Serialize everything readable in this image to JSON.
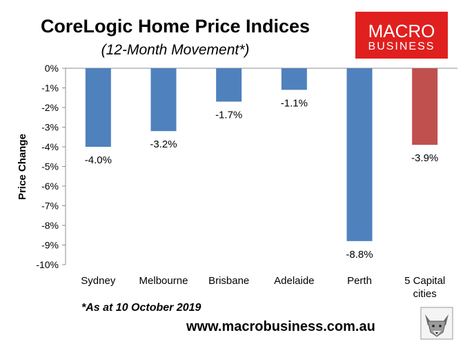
{
  "chart_data": {
    "type": "bar",
    "title": "CoreLogic Home Price Indices",
    "subtitle": "(12-Month Movement*)",
    "xlabel": "",
    "ylabel": "Price Change",
    "categories": [
      "Sydney",
      "Melbourne",
      "Brisbane",
      "Adelaide",
      "Perth",
      "5 Capital cities"
    ],
    "values": [
      -4.0,
      -3.2,
      -1.7,
      -1.1,
      -8.8,
      -3.9
    ],
    "value_labels": [
      "-4.0%",
      "-3.2%",
      "-1.7%",
      "-1.1%",
      "-8.8%",
      "-3.9%"
    ],
    "bar_colors": [
      "#4F81BD",
      "#4F81BD",
      "#4F81BD",
      "#4F81BD",
      "#4F81BD",
      "#C0504D"
    ],
    "ylim": [
      -10,
      0
    ],
    "yticks": [
      0,
      -1,
      -2,
      -3,
      -4,
      -5,
      -6,
      -7,
      -8,
      -9,
      -10
    ],
    "ytick_labels": [
      "0%",
      "-1%",
      "-2%",
      "-3%",
      "-4%",
      "-5%",
      "-6%",
      "-7%",
      "-8%",
      "-9%",
      "-10%"
    ],
    "grid": false,
    "legend": "none"
  },
  "footnote": "*As at 10 October 2019",
  "website": "www.macrobusiness.com.au",
  "logo": {
    "line1": "MACRO",
    "line2": "BUSINESS",
    "background": "#E0201F",
    "text_color": "#FFFFFF"
  },
  "mascot_icon": "wolf-icon"
}
